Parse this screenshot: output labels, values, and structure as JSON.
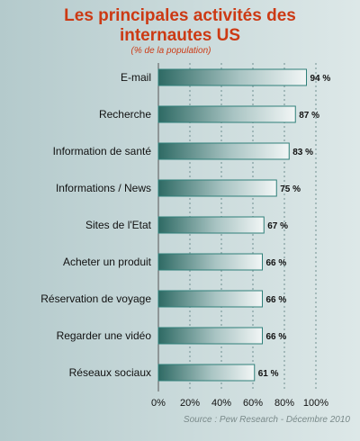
{
  "chart_data": {
    "type": "bar",
    "orientation": "horizontal",
    "title_line1": "Les principales activités des",
    "title_line2": "internautes US",
    "subtitle": "(% de la population)",
    "source": "Source : Pew Research - Décembre 2010",
    "categories": [
      "E-mail",
      "Recherche",
      "Information de santé",
      "Informations / News",
      "Sites de l'Etat",
      "Acheter un produit",
      "Réservation de voyage",
      "Regarder une vidéo",
      "Réseaux sociaux"
    ],
    "values": [
      94,
      87,
      83,
      75,
      67,
      66,
      66,
      66,
      61
    ],
    "value_labels": [
      "94 %",
      "87 %",
      "83 %",
      "75 %",
      "67 %",
      "66 %",
      "66 %",
      "66 %",
      "61 %"
    ],
    "xlim": [
      0,
      100
    ],
    "x_ticks": [
      0,
      20,
      40,
      60,
      80,
      100
    ],
    "x_tick_labels": [
      "0%",
      "20%",
      "40%",
      "60%",
      "80%",
      "100%"
    ],
    "grid": true,
    "colors": {
      "title": "#cc3a14",
      "bar_dark": "#2e6a64",
      "bar_light": "#f2f6f6",
      "bar_border": "#2f7f79"
    }
  }
}
